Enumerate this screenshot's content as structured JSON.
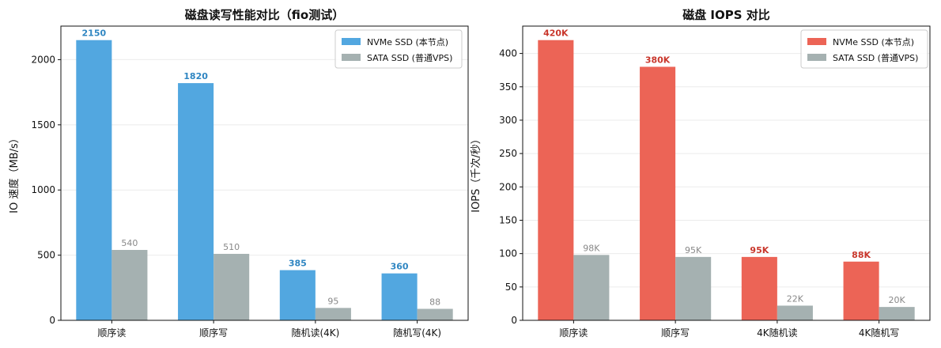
{
  "colors": {
    "nvme_left": "#52a7e0",
    "nvme_left_label": "#2f86c2",
    "nvme_right": "#ec6456",
    "nvme_right_label": "#c9372c",
    "sata": "#a5b1b1",
    "sata_label": "#888888"
  },
  "chart_data": [
    {
      "type": "bar",
      "title": "磁盘读写性能对比（fio测试）",
      "xlabel": "",
      "ylabel": "IO 速度（MB/s）",
      "categories": [
        "顺序读",
        "顺序写",
        "随机读(4K)",
        "随机写(4K)"
      ],
      "ylim": [
        0,
        2257.5
      ],
      "yticks": [
        0,
        500,
        1000,
        1500,
        2000
      ],
      "legend_position": "top-right",
      "grid": "y",
      "series": [
        {
          "name": "NVMe SSD (本节点)",
          "values": [
            2150,
            1820,
            385,
            360
          ],
          "labels": [
            "2150",
            "1820",
            "385",
            "360"
          ]
        },
        {
          "name": "SATA SSD (普通VPS)",
          "values": [
            540,
            510,
            95,
            88
          ],
          "labels": [
            "540",
            "510",
            "95",
            "88"
          ]
        }
      ]
    },
    {
      "type": "bar",
      "title": "磁盘 IOPS 对比",
      "xlabel": "",
      "ylabel": "IOPS（千次/秒）",
      "categories": [
        "顺序读",
        "顺序写",
        "4K随机读",
        "4K随机写"
      ],
      "ylim": [
        0,
        441
      ],
      "yticks": [
        0,
        50,
        100,
        150,
        200,
        250,
        300,
        350,
        400
      ],
      "legend_position": "top-right",
      "grid": "y",
      "series": [
        {
          "name": "NVMe SSD (本节点)",
          "values": [
            420,
            380,
            95,
            88
          ],
          "labels": [
            "420K",
            "380K",
            "95K",
            "88K"
          ]
        },
        {
          "name": "SATA SSD (普通VPS)",
          "values": [
            98,
            95,
            22,
            20
          ],
          "labels": [
            "98K",
            "95K",
            "22K",
            "20K"
          ]
        }
      ]
    }
  ]
}
